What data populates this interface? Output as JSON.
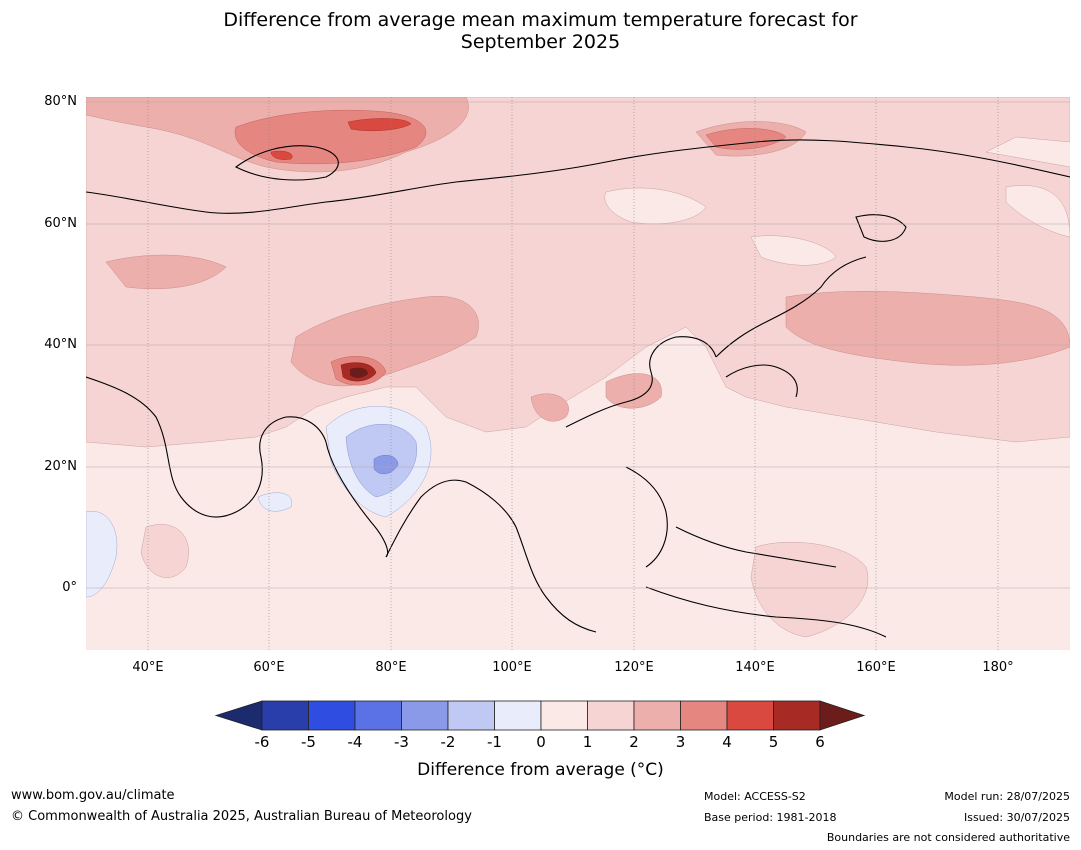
{
  "title_line1": "Difference from average mean maximum temperature forecast for",
  "title_line2": "September 2025",
  "map": {
    "lat_ticks": [
      "80°N",
      "60°N",
      "40°N",
      "20°N",
      "0°"
    ],
    "lon_ticks": [
      "40°E",
      "60°E",
      "80°E",
      "100°E",
      "120°E",
      "140°E",
      "160°E",
      "180°"
    ]
  },
  "colorbar": {
    "labels": [
      "-6",
      "-5",
      "-4",
      "-3",
      "-2",
      "-1",
      "0",
      "1",
      "2",
      "3",
      "4",
      "5",
      "6"
    ],
    "colors": [
      "#1c2a6e",
      "#2a3eab",
      "#2f4de0",
      "#5b72e6",
      "#8a9ae9",
      "#c0c9f3",
      "#e9ecfb",
      "#fbe9e8",
      "#f5d4d3",
      "#edafac",
      "#e68680",
      "#d9493f",
      "#a82a24",
      "#6d1c1c"
    ],
    "title": "Difference from average (°C)"
  },
  "footer": {
    "url": "www.bom.gov.au/climate",
    "copyright": "© Commonwealth of Australia 2025, Australian Bureau of Meteorology",
    "model": "Model: ACCESS-S2",
    "base_period": "Base period: 1981-2018",
    "model_run": "Model run: 28/07/2025",
    "issued": "Issued: 30/07/2025",
    "disclaimer": "Boundaries are not considered authoritative"
  }
}
